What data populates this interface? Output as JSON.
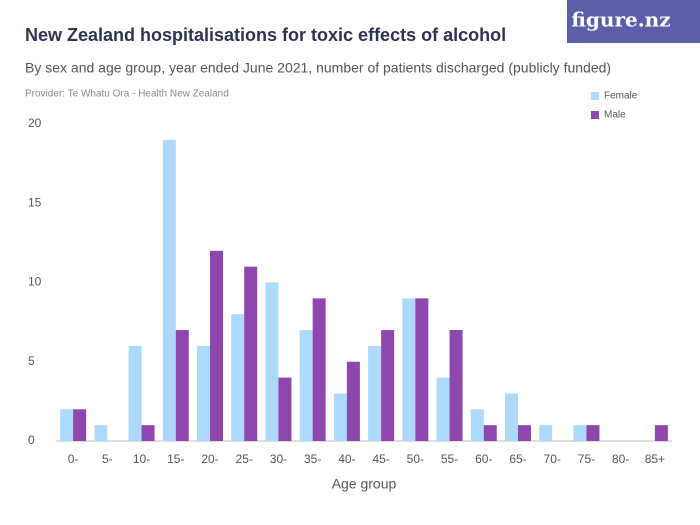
{
  "brand": "figure.nz",
  "chart_data": {
    "type": "bar",
    "title": "New Zealand hospitalisations for toxic effects of alcohol",
    "subtitle": "By sex and age group, year ended June 2021, number of patients discharged (publicly funded)",
    "source": "Provider: Te Whatu Ora - Health New Zealand",
    "x_label": "Age group",
    "categories": [
      "0-",
      "5-",
      "10-",
      "15-",
      "20-",
      "25-",
      "30-",
      "35-",
      "40-",
      "45-",
      "50-",
      "55-",
      "60-",
      "65-",
      "70-",
      "75-",
      "80-",
      "85+"
    ],
    "series": [
      {
        "name": "Female",
        "color": "#addafc",
        "values": [
          2,
          1,
          6,
          19,
          6,
          8,
          10,
          7,
          3,
          6,
          9,
          4,
          2,
          3,
          1,
          1,
          0,
          0
        ]
      },
      {
        "name": "Male",
        "color": "#8e47ad",
        "values": [
          2,
          0,
          1,
          7,
          12,
          11,
          4,
          9,
          5,
          7,
          9,
          7,
          1,
          1,
          0,
          1,
          0,
          1
        ]
      }
    ],
    "ylim": [
      0,
      20
    ],
    "yticks": [
      0,
      5,
      10,
      15,
      20
    ],
    "grid": false,
    "legend": "top-right"
  }
}
